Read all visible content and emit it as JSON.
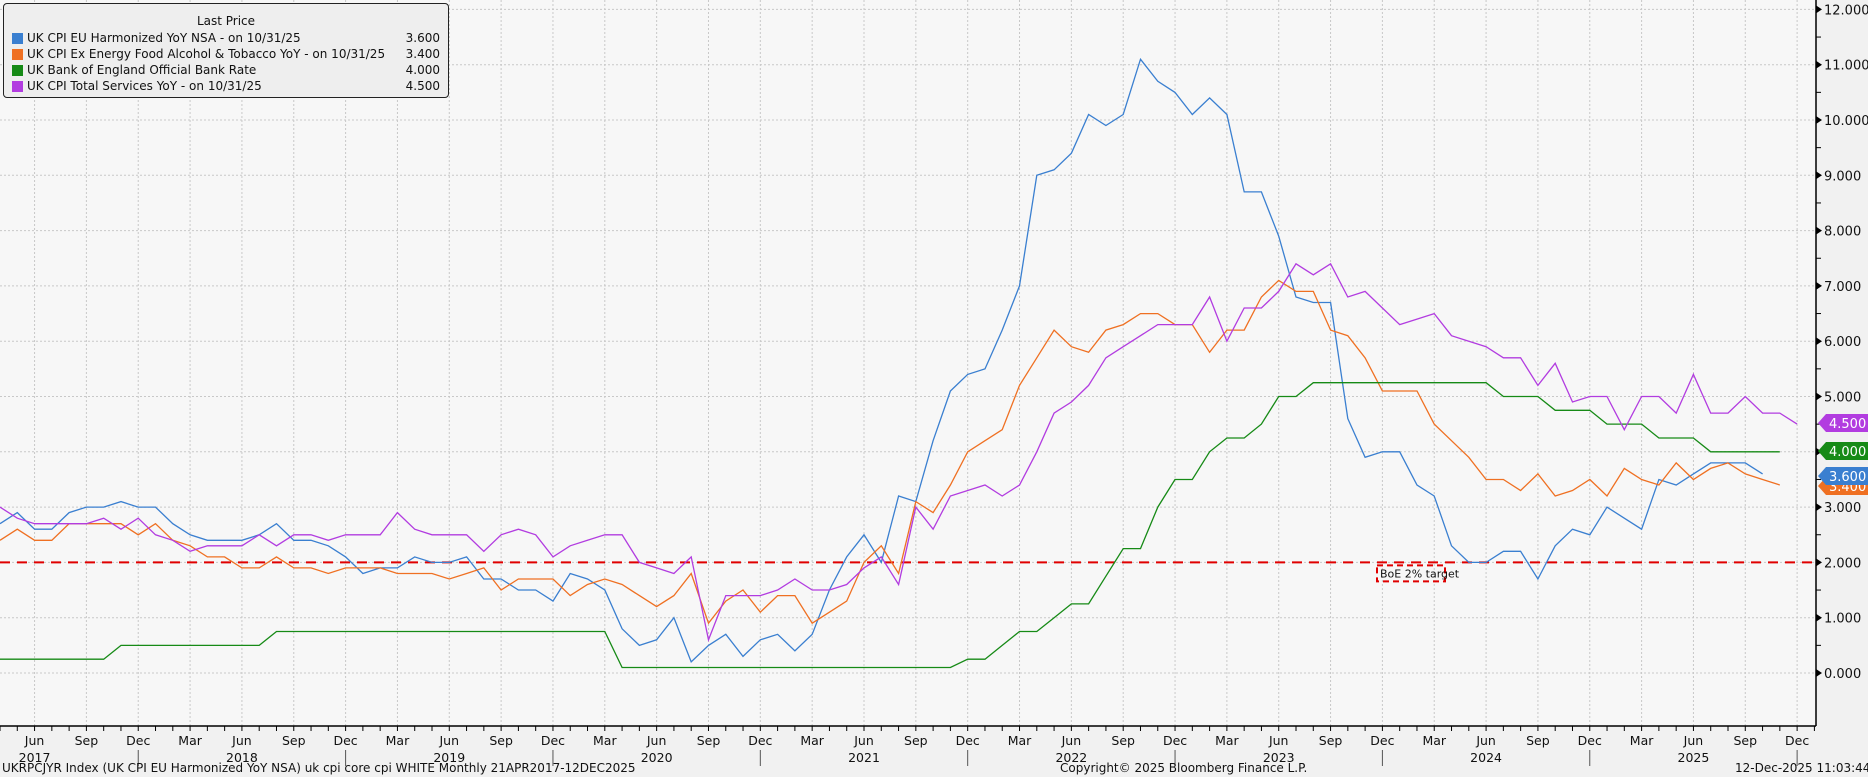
{
  "legend": {
    "header": "Last Price",
    "items": [
      {
        "label": "UK CPI EU Harmonized YoY NSA -  on 10/31/25",
        "value": "3.600",
        "color": "#3a7fd0"
      },
      {
        "label": "UK CPI Ex Energy Food Alcohol & Tobacco YoY -  on 10/31/25",
        "value": "3.400",
        "color": "#ef7022"
      },
      {
        "label": "UK Bank of England Official Bank Rate",
        "value": "4.000",
        "color": "#168a16"
      },
      {
        "label": "UK CPI Total Services YoY -  on 10/31/25",
        "value": "4.500",
        "color": "#b23ce0"
      }
    ]
  },
  "footer": {
    "left": "UKRPCJYR Index (UK CPI EU Harmonized YoY NSA) uk cpi core cpi WHITE Monthly 21APR2017-12DEC2025",
    "center": "Copyright© 2025 Bloomberg Finance L.P.",
    "right": "12-Dec-2025 11:03:44"
  },
  "annotation": {
    "label": "BoE 2% target",
    "value": 2.0,
    "color": "#e00000"
  },
  "chart_data": {
    "type": "line",
    "title": "",
    "xlabel": "",
    "ylabel": "",
    "ylim": [
      -0.5,
      12.2
    ],
    "grid": true,
    "legend_position": "top-left",
    "y_ticks": [
      "0.000",
      "1.000",
      "2.000",
      "3.000",
      "4.000",
      "5.000",
      "6.000",
      "7.000",
      "8.000",
      "9.000",
      "10.000",
      "11.000",
      "12.000"
    ],
    "x_start": "Apr 2017",
    "x_end": "Dec 2025",
    "x_tick_months": [
      "Jun",
      "Sep",
      "Dec",
      "Mar",
      "Jun",
      "Sep",
      "Dec",
      "Mar",
      "Jun",
      "Sep",
      "Dec",
      "Mar",
      "Jun",
      "Sep",
      "Dec",
      "Mar",
      "Jun",
      "Sep",
      "Dec",
      "Mar",
      "Jun",
      "Sep",
      "Dec",
      "Mar",
      "Jun",
      "Sep",
      "Dec",
      "Mar",
      "Jun",
      "Sep",
      "Dec",
      "Mar",
      "Jun",
      "Sep",
      "Dec"
    ],
    "x_tick_years": [
      "2017",
      "2018",
      "2019",
      "2020",
      "2021",
      "2022",
      "2023",
      "2024",
      "2025"
    ],
    "series": [
      {
        "name": "UK CPI EU Harmonized YoY NSA",
        "color": "#3a7fd0",
        "last": "3.600",
        "values": [
          2.7,
          2.9,
          2.6,
          2.6,
          2.9,
          3.0,
          3.0,
          3.1,
          3.0,
          3.0,
          2.7,
          2.5,
          2.4,
          2.4,
          2.4,
          2.5,
          2.7,
          2.4,
          2.4,
          2.3,
          2.1,
          1.8,
          1.9,
          1.9,
          2.1,
          2.0,
          2.0,
          2.1,
          1.7,
          1.7,
          1.5,
          1.5,
          1.3,
          1.8,
          1.7,
          1.5,
          0.8,
          0.5,
          0.6,
          1.0,
          0.2,
          0.5,
          0.7,
          0.3,
          0.6,
          0.7,
          0.4,
          0.7,
          1.5,
          2.1,
          2.5,
          2.0,
          3.2,
          3.1,
          4.2,
          5.1,
          5.4,
          5.5,
          6.2,
          7.0,
          9.0,
          9.1,
          9.4,
          10.1,
          9.9,
          10.1,
          11.1,
          10.7,
          10.5,
          10.1,
          10.4,
          10.1,
          8.7,
          8.7,
          7.9,
          6.8,
          6.7,
          6.7,
          4.6,
          3.9,
          4.0,
          4.0,
          3.4,
          3.2,
          2.3,
          2.0,
          2.0,
          2.2,
          2.2,
          1.7,
          2.3,
          2.6,
          2.5,
          3.0,
          2.8,
          2.6,
          3.5,
          3.4,
          3.6,
          3.8,
          3.8,
          3.8,
          3.6
        ]
      },
      {
        "name": "UK CPI Ex Energy Food Alcohol & Tobacco YoY",
        "color": "#ef7022",
        "last": "3.400",
        "values": [
          2.4,
          2.6,
          2.4,
          2.4,
          2.7,
          2.7,
          2.7,
          2.7,
          2.5,
          2.7,
          2.4,
          2.3,
          2.1,
          2.1,
          1.9,
          1.9,
          2.1,
          1.9,
          1.9,
          1.8,
          1.9,
          1.9,
          1.9,
          1.8,
          1.8,
          1.8,
          1.7,
          1.8,
          1.9,
          1.5,
          1.7,
          1.7,
          1.7,
          1.4,
          1.6,
          1.7,
          1.6,
          1.4,
          1.2,
          1.4,
          1.8,
          0.9,
          1.3,
          1.5,
          1.1,
          1.4,
          1.4,
          0.9,
          1.1,
          1.3,
          2.0,
          2.3,
          1.8,
          3.1,
          2.9,
          3.4,
          4.0,
          4.2,
          4.4,
          5.2,
          5.7,
          6.2,
          5.9,
          5.8,
          6.2,
          6.3,
          6.5,
          6.5,
          6.3,
          6.3,
          5.8,
          6.2,
          6.2,
          6.8,
          7.1,
          6.9,
          6.9,
          6.2,
          6.1,
          5.7,
          5.1,
          5.1,
          5.1,
          4.5,
          4.2,
          3.9,
          3.5,
          3.5,
          3.3,
          3.6,
          3.2,
          3.3,
          3.5,
          3.2,
          3.7,
          3.5,
          3.4,
          3.8,
          3.5,
          3.7,
          3.8,
          3.6,
          3.5,
          3.4
        ]
      },
      {
        "name": "UK Bank of England Official Bank Rate",
        "color": "#168a16",
        "last": "4.000",
        "values": [
          0.25,
          0.25,
          0.25,
          0.25,
          0.25,
          0.25,
          0.25,
          0.5,
          0.5,
          0.5,
          0.5,
          0.5,
          0.5,
          0.5,
          0.5,
          0.5,
          0.75,
          0.75,
          0.75,
          0.75,
          0.75,
          0.75,
          0.75,
          0.75,
          0.75,
          0.75,
          0.75,
          0.75,
          0.75,
          0.75,
          0.75,
          0.75,
          0.75,
          0.75,
          0.75,
          0.75,
          0.1,
          0.1,
          0.1,
          0.1,
          0.1,
          0.1,
          0.1,
          0.1,
          0.1,
          0.1,
          0.1,
          0.1,
          0.1,
          0.1,
          0.1,
          0.1,
          0.1,
          0.1,
          0.1,
          0.1,
          0.25,
          0.25,
          0.5,
          0.75,
          0.75,
          1.0,
          1.25,
          1.25,
          1.75,
          2.25,
          2.25,
          3.0,
          3.5,
          3.5,
          4.0,
          4.25,
          4.25,
          4.5,
          5.0,
          5.0,
          5.25,
          5.25,
          5.25,
          5.25,
          5.25,
          5.25,
          5.25,
          5.25,
          5.25,
          5.25,
          5.25,
          5.0,
          5.0,
          5.0,
          4.75,
          4.75,
          4.75,
          4.5,
          4.5,
          4.5,
          4.25,
          4.25,
          4.25,
          4.0,
          4.0,
          4.0,
          4.0,
          4.0
        ]
      },
      {
        "name": "UK CPI Total Services YoY",
        "color": "#b23ce0",
        "last": "4.500",
        "values": [
          3.0,
          2.8,
          2.7,
          2.7,
          2.7,
          2.7,
          2.8,
          2.6,
          2.8,
          2.5,
          2.4,
          2.2,
          2.3,
          2.3,
          2.3,
          2.5,
          2.3,
          2.5,
          2.5,
          2.4,
          2.5,
          2.5,
          2.5,
          2.9,
          2.6,
          2.5,
          2.5,
          2.5,
          2.2,
          2.5,
          2.6,
          2.5,
          2.1,
          2.3,
          2.4,
          2.5,
          2.5,
          2.0,
          1.9,
          1.8,
          2.1,
          0.6,
          1.4,
          1.4,
          1.4,
          1.5,
          1.7,
          1.5,
          1.5,
          1.6,
          1.9,
          2.1,
          1.6,
          3.0,
          2.6,
          3.2,
          3.3,
          3.4,
          3.2,
          3.4,
          4.0,
          4.7,
          4.9,
          5.2,
          5.7,
          5.9,
          6.1,
          6.3,
          6.3,
          6.3,
          6.8,
          6.0,
          6.6,
          6.6,
          6.9,
          7.4,
          7.2,
          7.4,
          6.8,
          6.9,
          6.6,
          6.3,
          6.4,
          6.5,
          6.1,
          6.0,
          5.9,
          5.7,
          5.7,
          5.2,
          5.6,
          4.9,
          5.0,
          5.0,
          4.4,
          5.0,
          5.0,
          4.7,
          5.4,
          4.7,
          4.7,
          5.0,
          4.7,
          4.7,
          4.5
        ]
      }
    ]
  }
}
